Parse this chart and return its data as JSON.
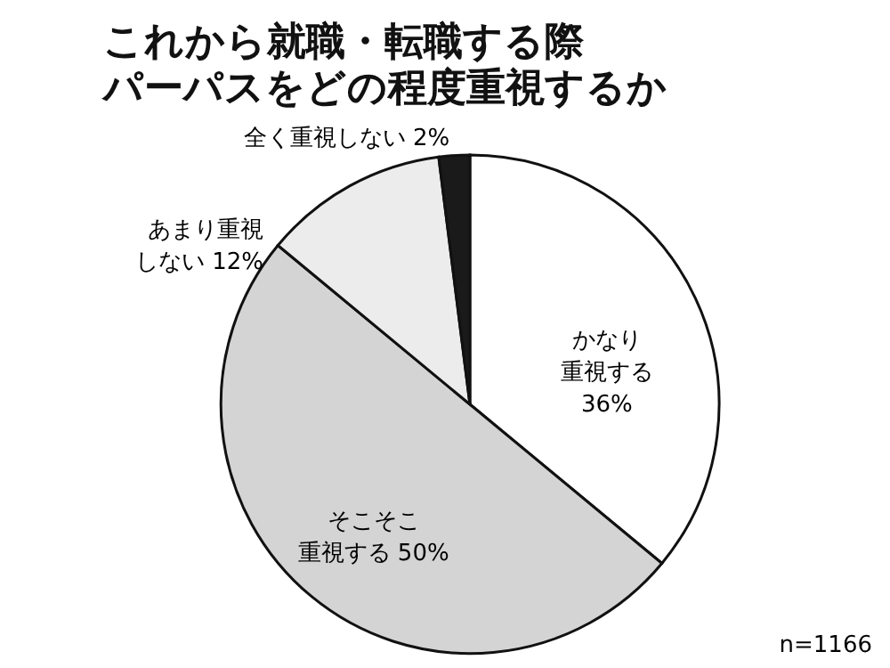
{
  "chart_data": {
    "type": "pie",
    "title": "これから就職・転職する際",
    "subtitle": "パーパスをどの程度重視するか",
    "categories": [
      "かなり重視する",
      "そこそこ重視する",
      "あまり重視しない",
      "全く重視しない"
    ],
    "values": [
      36,
      50,
      12,
      2
    ],
    "colors": [
      "#ffffff",
      "#d4d4d4",
      "#ececec",
      "#1a1a1a"
    ],
    "value_labels": [
      "36%",
      "50%",
      "12%",
      "2%"
    ],
    "annotations": [
      "n=1166"
    ]
  }
}
